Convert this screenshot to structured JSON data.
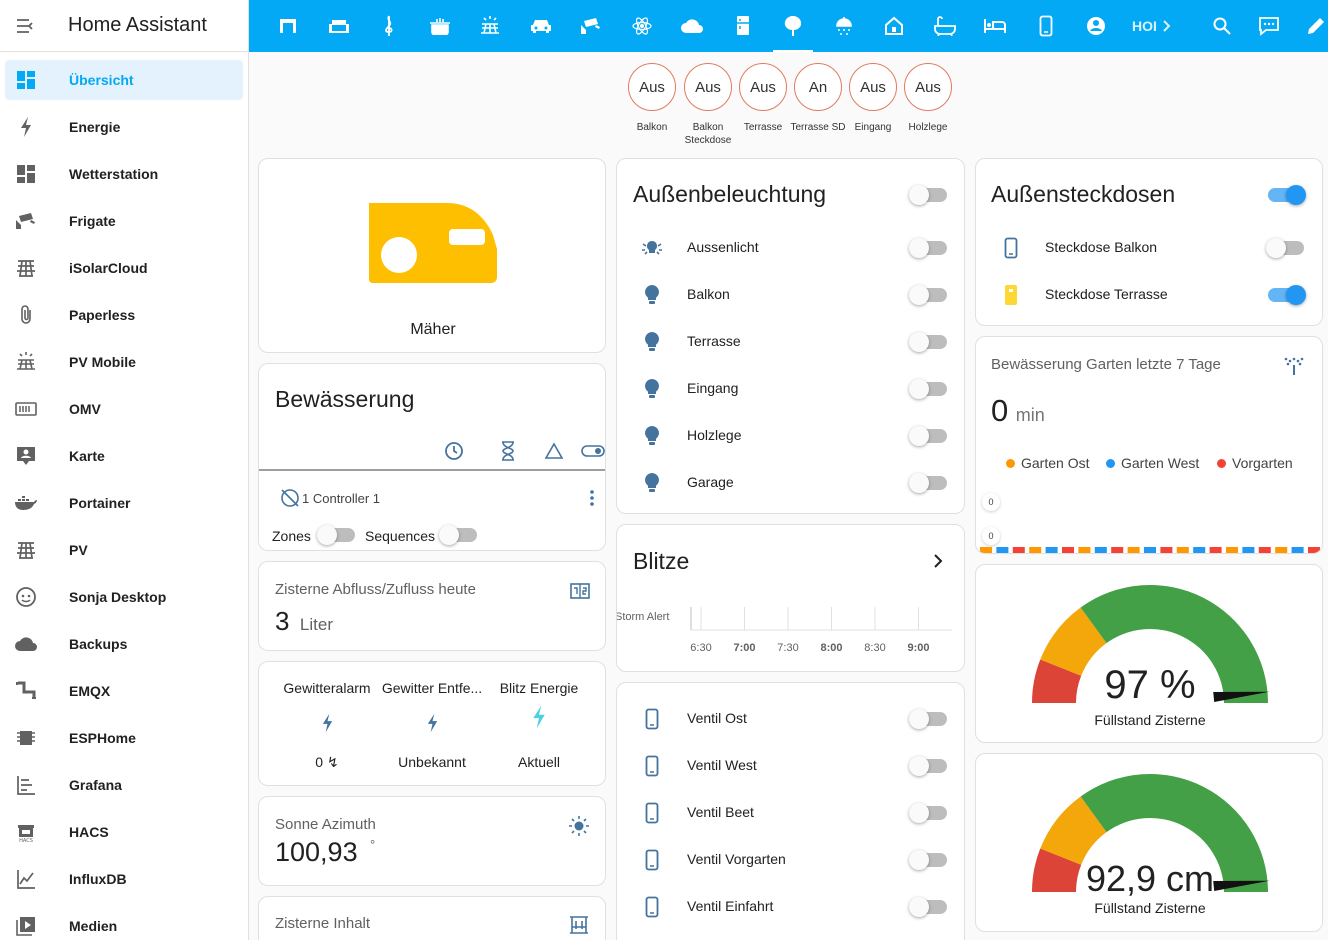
{
  "app_title": "Home Assistant",
  "sidebar": {
    "items": [
      {
        "label": "Übersicht",
        "icon": "dashboard-icon"
      },
      {
        "label": "Energie",
        "icon": "lightning-icon"
      },
      {
        "label": "Wetterstation",
        "icon": "dashboard-icon"
      },
      {
        "label": "Frigate",
        "icon": "cctv-icon"
      },
      {
        "label": "iSolarCloud",
        "icon": "solar-panel-icon"
      },
      {
        "label": "Paperless",
        "icon": "paperclip-icon"
      },
      {
        "label": "PV Mobile",
        "icon": "solar-power-icon"
      },
      {
        "label": "OMV",
        "icon": "nas-icon"
      },
      {
        "label": "Karte",
        "icon": "map-account-icon"
      },
      {
        "label": "Portainer",
        "icon": "docker-icon"
      },
      {
        "label": "PV",
        "icon": "solar-panel-icon"
      },
      {
        "label": "Sonja Desktop",
        "icon": "face-icon"
      },
      {
        "label": "Backups",
        "icon": "cloud-icon"
      },
      {
        "label": "EMQX",
        "icon": "pipe-icon"
      },
      {
        "label": "ESPHome",
        "icon": "chip-icon"
      },
      {
        "label": "Grafana",
        "icon": "chart-icon"
      },
      {
        "label": "HACS",
        "icon": "hacs-icon"
      },
      {
        "label": "InfluxDB",
        "icon": "chart-line-icon"
      },
      {
        "label": "Medien",
        "icon": "play-box-icon"
      }
    ]
  },
  "toolbar": {
    "overflow_text": "HOI"
  },
  "scenes": [
    {
      "state": "Aus",
      "label": "Balkon"
    },
    {
      "state": "Aus",
      "label": "Balkon Steckdose"
    },
    {
      "state": "Aus",
      "label": "Terrasse"
    },
    {
      "state": "An",
      "label": "Terrasse SD"
    },
    {
      "state": "Aus",
      "label": "Eingang"
    },
    {
      "state": "Aus",
      "label": "Holzlege"
    }
  ],
  "maeher": {
    "name": "Mäher"
  },
  "bewaesserung": {
    "title": "Bewässerung",
    "controller": "1 Controller 1",
    "zones": "Zones",
    "sequences": "Sequences"
  },
  "zisterne_abfluss": {
    "title": "Zisterne Abfluss/Zufluss heute",
    "value": "3",
    "unit": "Liter"
  },
  "gewitter": {
    "items": [
      {
        "name": "Gewitteralarm",
        "state": "0 ↯"
      },
      {
        "name": "Gewitter Entfe...",
        "state": "Unbekannt"
      },
      {
        "name": "Blitz Energie",
        "state": "Aktuell"
      }
    ]
  },
  "sonne": {
    "title": "Sonne Azimuth",
    "value": "100,93",
    "unit": "°"
  },
  "zisterne_inhalt": {
    "title": "Zisterne Inhalt"
  },
  "aussenbeleuchtung": {
    "title": "Außenbeleuchtung",
    "items": [
      {
        "label": "Aussenlicht",
        "icon": "light-group-icon"
      },
      {
        "label": "Balkon",
        "icon": "bulb-icon"
      },
      {
        "label": "Terrasse",
        "icon": "bulb-icon"
      },
      {
        "label": "Eingang",
        "icon": "bulb-icon"
      },
      {
        "label": "Holzlege",
        "icon": "bulb-icon"
      },
      {
        "label": "Garage",
        "icon": "bulb-icon"
      }
    ]
  },
  "blitze": {
    "title": "Blitze",
    "series_label": "Storm Alert",
    "ticks": [
      "6:30",
      "7:00",
      "7:30",
      "8:00",
      "8:30",
      "9:00"
    ]
  },
  "ventile": {
    "items": [
      {
        "label": "Ventil Ost"
      },
      {
        "label": "Ventil West"
      },
      {
        "label": "Ventil Beet"
      },
      {
        "label": "Ventil Vorgarten"
      },
      {
        "label": "Ventil Einfahrt"
      }
    ]
  },
  "aussensteckdosen": {
    "title": "Außensteckdosen",
    "items": [
      {
        "label": "Steckdose Balkon",
        "on": false
      },
      {
        "label": "Steckdose Terrasse",
        "on": true
      }
    ]
  },
  "bew_garten": {
    "title": "Bewässerung Garten letzte 7 Tage",
    "value": "0",
    "unit": "min",
    "legend": [
      {
        "name": "Garten Ost",
        "color": "#ff9800"
      },
      {
        "name": "Garten West",
        "color": "#2196f3"
      },
      {
        "name": "Vorgarten",
        "color": "#f44336"
      }
    ],
    "axis_labels": [
      "0",
      "0"
    ]
  },
  "gauge1": {
    "value_text": "97 %",
    "name": "Füllstand Zisterne",
    "fraction": 0.97
  },
  "gauge2": {
    "value_text": "92,9 cm",
    "name": "Füllstand Zisterne",
    "fraction": 0.97
  },
  "colors": {
    "accent": "#03a9f4",
    "gauge_red": "#db4437",
    "gauge_yellow": "#f4a70b",
    "gauge_green": "#43a047",
    "icon_blue": "#44739e"
  }
}
